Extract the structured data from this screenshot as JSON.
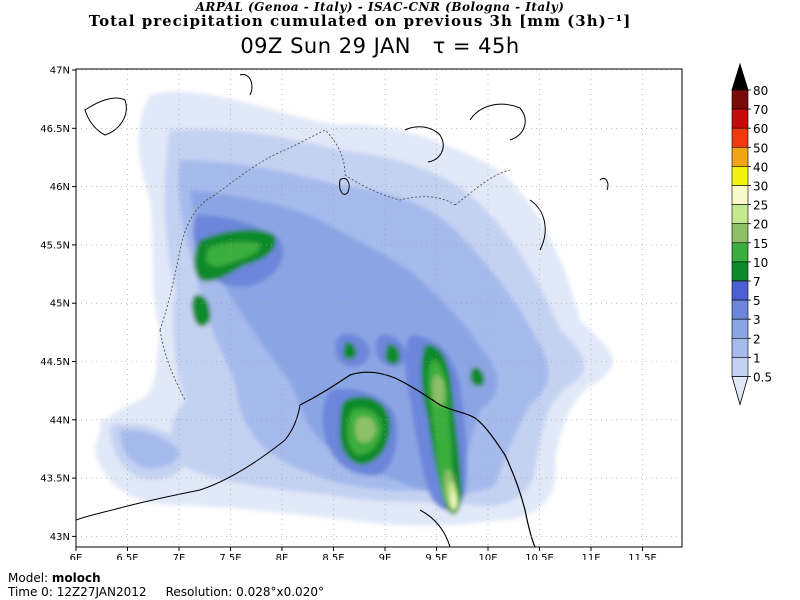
{
  "header": {
    "institutions": "ARPAL (Genoa - Italy)   -   ISAC-CNR (Bologna - Italy)",
    "title": "Total precipitation cumulated on previous 3h [mm (3h)⁻¹]",
    "valid_time": "09Z Sun 29 JAN",
    "lead_time": "τ = 45h"
  },
  "map": {
    "lon_ticks": [
      "6E",
      "6.5E",
      "7E",
      "7.5E",
      "8E",
      "8.5E",
      "9E",
      "9.5E",
      "10E",
      "10.5E",
      "11E",
      "11.5E"
    ],
    "lat_ticks": [
      "47N",
      "46.5N",
      "46N",
      "45.5N",
      "45N",
      "44.5N",
      "44N",
      "43.5N",
      "43N"
    ],
    "colors": {
      "coast": "#000000",
      "border": "#555555"
    }
  },
  "colorbar": {
    "levels": [
      "0.5",
      "1",
      "2",
      "3",
      "5",
      "7",
      "10",
      "15",
      "20",
      "25",
      "30",
      "40",
      "50",
      "60",
      "70",
      "80"
    ],
    "colors": [
      "#e1e8f8",
      "#c4d2f2",
      "#a6baec",
      "#8ba5e4",
      "#6c86dc",
      "#4d5fd2",
      "#0a8a2a",
      "#3aae3e",
      "#8ec06a",
      "#c4ea8e",
      "#fafac8",
      "#f2f20e",
      "#f2a412",
      "#f23a0e",
      "#c80a0a",
      "#7a0a0a",
      "#000000"
    ]
  },
  "footer": {
    "model_label": "Model:",
    "model_value": "moloch",
    "time0_label": "Time 0:",
    "time0_value": "12Z27JAN2012",
    "resolution_label": "Resolution:",
    "resolution_value": "0.028°x0.020°"
  }
}
